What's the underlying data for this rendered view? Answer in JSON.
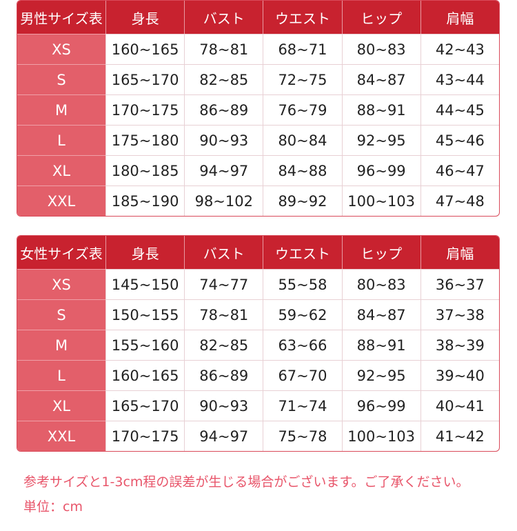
{
  "headers": [
    "身長",
    "バスト",
    "ウエスト",
    "ヒップ",
    "肩幅"
  ],
  "men": {
    "title": "男性サイズ表",
    "rows": [
      [
        "XS",
        "160~165",
        "78~81",
        "68~71",
        "80~83",
        "42~43"
      ],
      [
        "S",
        "165~170",
        "82~85",
        "72~75",
        "84~87",
        "43~44"
      ],
      [
        "M",
        "170~175",
        "86~89",
        "76~79",
        "88~91",
        "44~45"
      ],
      [
        "L",
        "175~180",
        "90~93",
        "80~84",
        "92~95",
        "45~46"
      ],
      [
        "XL",
        "180~185",
        "94~97",
        "84~88",
        "96~99",
        "46~47"
      ],
      [
        "XXL",
        "185~190",
        "98~102",
        "89~92",
        "100~103",
        "47~48"
      ]
    ]
  },
  "women": {
    "title": "女性サイズ表",
    "rows": [
      [
        "XS",
        "145~150",
        "74~77",
        "55~58",
        "80~83",
        "36~37"
      ],
      [
        "S",
        "150~155",
        "78~81",
        "59~62",
        "84~87",
        "37~38"
      ],
      [
        "M",
        "155~160",
        "82~85",
        "63~66",
        "88~91",
        "38~39"
      ],
      [
        "L",
        "160~165",
        "86~89",
        "67~70",
        "92~95",
        "39~40"
      ],
      [
        "XL",
        "165~170",
        "90~93",
        "71~74",
        "96~99",
        "40~41"
      ],
      [
        "XXL",
        "170~175",
        "94~97",
        "75~78",
        "100~103",
        "41~42"
      ]
    ]
  },
  "notes": {
    "disclaimer": "参考サイズと1-3cm程の誤差が生じる場合がございます。ご了承ください。",
    "unit": "単位：cm"
  },
  "colors": {
    "header": "#c8222f",
    "size_column": "#e35f6a",
    "note_text": "#e8556a"
  }
}
